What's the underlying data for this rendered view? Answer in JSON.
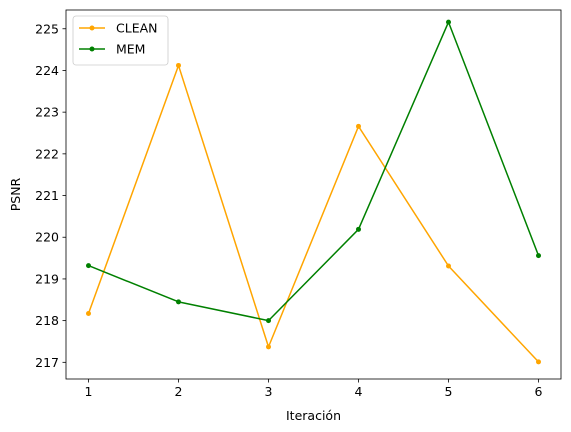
{
  "chart_data": {
    "type": "line",
    "title": "",
    "xlabel": "Iteración",
    "ylabel": "PSNR",
    "x": [
      1,
      2,
      3,
      4,
      5,
      6
    ],
    "xlim": [
      0.75,
      6.25
    ],
    "ylim": [
      216.6,
      225.45
    ],
    "xticks": [
      1,
      2,
      3,
      4,
      5,
      6
    ],
    "yticks": [
      217,
      218,
      219,
      220,
      221,
      222,
      223,
      224,
      225
    ],
    "grid": false,
    "legend_position": "top-left",
    "series": [
      {
        "name": "CLEAN",
        "color": "#ffa500",
        "values": [
          218.17,
          224.12,
          217.37,
          222.66,
          219.31,
          217.01
        ]
      },
      {
        "name": "MEM",
        "color": "#008000",
        "values": [
          219.32,
          218.45,
          218.0,
          220.19,
          225.16,
          219.56
        ]
      }
    ]
  }
}
